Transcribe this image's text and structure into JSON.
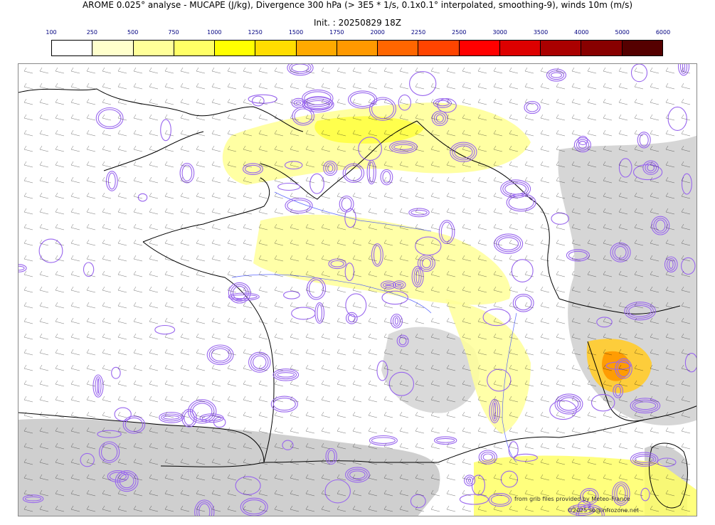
{
  "header": {
    "title": "AROME 0.025° analyse - MUCAPE (J/kg), Divergence 300 hPa (> 3E5 * 1/s, 0.1x0.1° interpolated, smoothing-9), winds 10m (m/s)",
    "init": "Init. : 20250829 18Z"
  },
  "colorbar": {
    "ticks": [
      "100",
      "250",
      "500",
      "750",
      "1000",
      "1250",
      "1500",
      "1750",
      "2000",
      "2250",
      "2500",
      "3000",
      "3500",
      "4000",
      "5000",
      "6000"
    ],
    "colors": [
      "#ffffff",
      "#ffffcc",
      "#ffff99",
      "#ffff66",
      "#ffff00",
      "#ffdd00",
      "#ffaa00",
      "#ff9900",
      "#ff6600",
      "#ff4400",
      "#ff0000",
      "#dd0000",
      "#aa0000",
      "#880000",
      "#550000"
    ]
  },
  "map": {
    "colors": {
      "coast": "#000000",
      "divergence": "#9966ee",
      "rivers": "#3344ff",
      "terrain": "#c8c8c8",
      "cape_low": "#ffff99",
      "cape_mid": "#ffff33",
      "cape_high": "#ffaa00",
      "barbs": "#000000"
    }
  },
  "credits": {
    "line1": "from grib files provided by Meteo-France",
    "line2": "©2025 sb@infrozone.net"
  }
}
